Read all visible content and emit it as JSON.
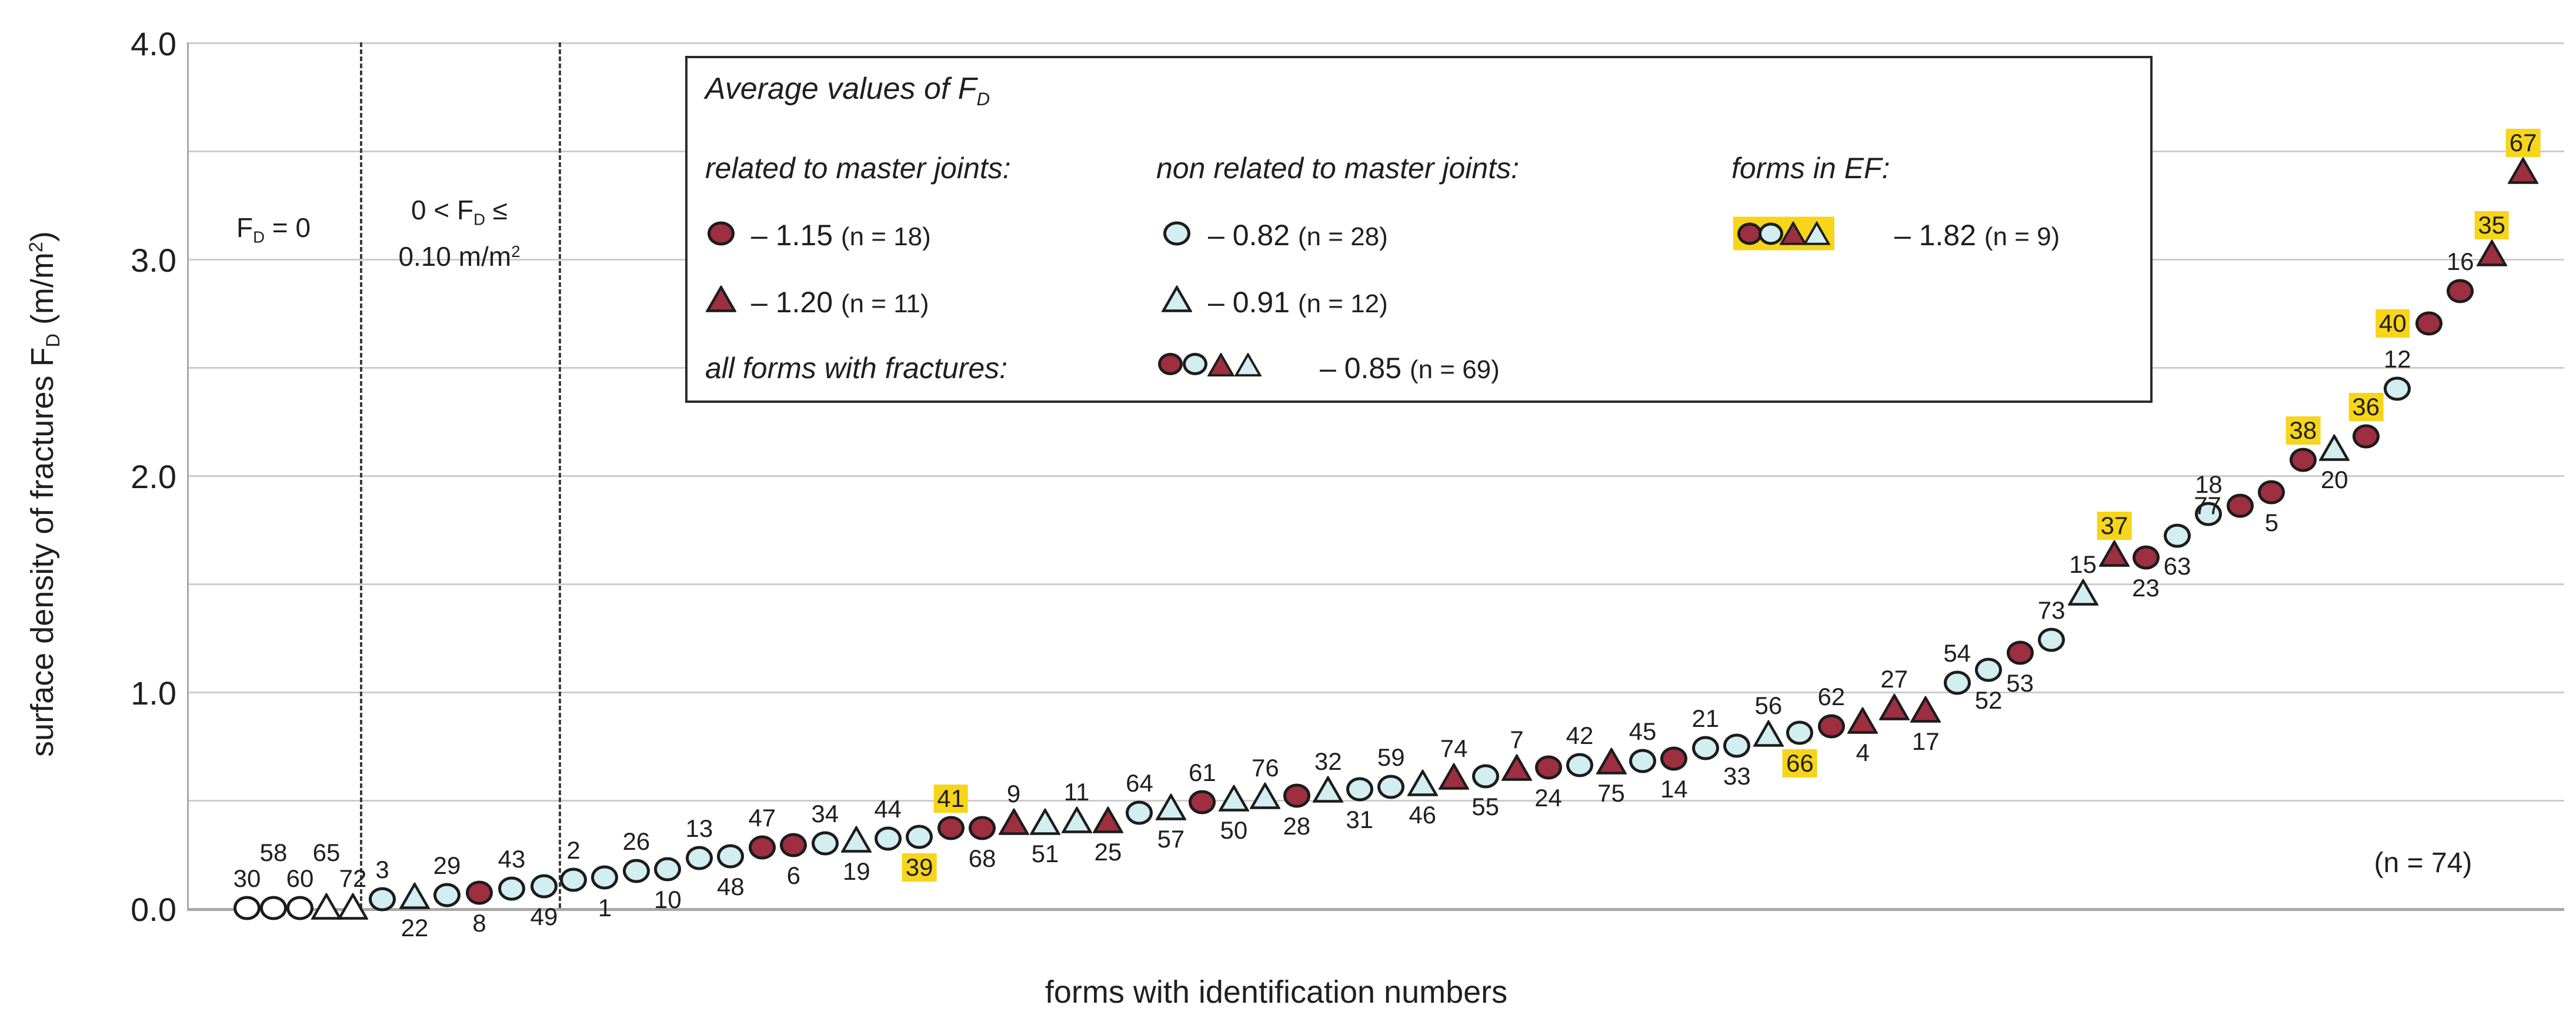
{
  "colors": {
    "mj_fill": "#9e2f40",
    "nmj_fill": "#d2eef1",
    "open_fill": "#ffffff",
    "outline": "#1c1c1c",
    "highlight": "#f6d51a",
    "grid": "#cccccc",
    "axis": "#a9a9a9",
    "text": "#1f1f1f"
  },
  "y_axis": {
    "title_main": "surface density of fractures F",
    "title_sub": "D",
    "title_unit_a": " (m/m",
    "title_unit_sup": "2",
    "title_unit_b": ")",
    "ticks": [
      "0.0",
      "1.0",
      "2.0",
      "3.0",
      "4.0"
    ]
  },
  "x_axis": {
    "title": "forms with identification numbers"
  },
  "annotations": {
    "n_total": "(n = 74)",
    "zone1": {
      "a": "F",
      "sub": "D",
      "b": " = 0"
    },
    "zone2": {
      "l1a": "0 < F",
      "l1sub": "D",
      "l1b": " ≤",
      "l2a": "0.10 m/m",
      "l2sup": "2"
    }
  },
  "legend": {
    "title_a": "Average values of F",
    "title_sub": "D",
    "col1_header": "related to master joints:",
    "col2_header": "non related to master joints:",
    "col3_header": "forms in EF:",
    "row3_header": "all forms with fractures:",
    "mj_circle_value": "– 1.15",
    "mj_circle_n": "(n = 18)",
    "mj_triangle_value": "– 1.20",
    "mj_triangle_n": "(n = 11)",
    "nmj_circle_value": "– 0.82",
    "nmj_circle_n": "(n = 28)",
    "nmj_triangle_value": "– 0.91",
    "nmj_triangle_n": "(n = 12)",
    "ef_value": "– 1.82",
    "ef_n": "(n = 9)",
    "all_value": "– 0.85",
    "all_n": "(n = 69)"
  },
  "chart_data": {
    "type": "scatter",
    "title": "",
    "xlabel": "forms with identification numbers",
    "ylabel": "surface density of fractures F_D (m/m2)",
    "ylim": [
      0,
      4.0
    ],
    "grid_step": 0.5,
    "legend_position": "top-center-inside",
    "zone_boundaries_note": "two vertical dashed lines separate F_D = 0 forms and 0 < F_D <= 0.10 m/m2 forms",
    "marker_types": {
      "mj-circle": "dark red filled circle - related to master joints",
      "mj-triangle": "dark red filled triangle - related to master joints",
      "nmj-circle": "light blue filled circle - non related to master joints",
      "nmj-triangle": "light blue filled triangle - non related to master joints",
      "open-circle": "white circle - F_D = 0",
      "open-triangle": "white triangle - F_D = 0"
    },
    "points": [
      {
        "id": "30",
        "marker": "open-circle",
        "value": 0,
        "label_pos": "above",
        "highlight": false
      },
      {
        "id": "58",
        "marker": "open-circle",
        "value": 0,
        "label_pos": "above2",
        "highlight": false
      },
      {
        "id": "60",
        "marker": "open-circle",
        "value": 0,
        "label_pos": "above",
        "highlight": false
      },
      {
        "id": "65",
        "marker": "open-triangle",
        "value": 0,
        "label_pos": "above2",
        "highlight": false
      },
      {
        "id": "72",
        "marker": "open-triangle",
        "value": 0,
        "label_pos": "above",
        "highlight": false
      },
      {
        "id": "3",
        "marker": "nmj-circle",
        "value": 0.04,
        "label_pos": "above",
        "highlight": false
      },
      {
        "id": "22",
        "marker": "nmj-triangle",
        "value": 0.05,
        "label_pos": "below",
        "highlight": false
      },
      {
        "id": "29",
        "marker": "nmj-circle",
        "value": 0.06,
        "label_pos": "above",
        "highlight": false
      },
      {
        "id": "8",
        "marker": "mj-circle",
        "value": 0.07,
        "label_pos": "below",
        "highlight": false
      },
      {
        "id": "43",
        "marker": "nmj-circle",
        "value": 0.09,
        "label_pos": "above",
        "highlight": false
      },
      {
        "id": "49",
        "marker": "nmj-circle",
        "value": 0.1,
        "label_pos": "below",
        "highlight": false
      },
      {
        "id": "2",
        "marker": "nmj-circle",
        "value": 0.13,
        "label_pos": "above",
        "highlight": false
      },
      {
        "id": "1",
        "marker": "nmj-circle",
        "value": 0.14,
        "label_pos": "below",
        "highlight": false
      },
      {
        "id": "26",
        "marker": "nmj-circle",
        "value": 0.17,
        "label_pos": "above",
        "highlight": false
      },
      {
        "id": "10",
        "marker": "nmj-circle",
        "value": 0.18,
        "label_pos": "below",
        "highlight": false
      },
      {
        "id": "13",
        "marker": "nmj-circle",
        "value": 0.23,
        "label_pos": "above",
        "highlight": false
      },
      {
        "id": "48",
        "marker": "nmj-circle",
        "value": 0.24,
        "label_pos": "below",
        "highlight": false
      },
      {
        "id": "47",
        "marker": "mj-circle",
        "value": 0.28,
        "label_pos": "above",
        "highlight": false
      },
      {
        "id": "6",
        "marker": "mj-circle",
        "value": 0.29,
        "label_pos": "below",
        "highlight": false
      },
      {
        "id": "34",
        "marker": "nmj-circle",
        "value": 0.3,
        "label_pos": "above",
        "highlight": false
      },
      {
        "id": "19",
        "marker": "nmj-triangle",
        "value": 0.31,
        "label_pos": "below",
        "highlight": false
      },
      {
        "id": "44",
        "marker": "nmj-circle",
        "value": 0.32,
        "label_pos": "above",
        "highlight": false
      },
      {
        "id": "39",
        "marker": "nmj-circle",
        "value": 0.33,
        "label_pos": "below",
        "highlight": true
      },
      {
        "id": "41",
        "marker": "mj-circle",
        "value": 0.37,
        "label_pos": "above",
        "highlight": true
      },
      {
        "id": "68",
        "marker": "mj-circle",
        "value": 0.37,
        "label_pos": "below",
        "highlight": false
      },
      {
        "id": "9",
        "marker": "mj-triangle",
        "value": 0.39,
        "label_pos": "above",
        "highlight": false
      },
      {
        "id": "51",
        "marker": "nmj-triangle",
        "value": 0.39,
        "label_pos": "below",
        "highlight": false
      },
      {
        "id": "11",
        "marker": "nmj-triangle",
        "value": 0.4,
        "label_pos": "above",
        "highlight": false
      },
      {
        "id": "25",
        "marker": "mj-triangle",
        "value": 0.4,
        "label_pos": "below",
        "highlight": false
      },
      {
        "id": "64",
        "marker": "nmj-circle",
        "value": 0.44,
        "label_pos": "above",
        "highlight": false
      },
      {
        "id": "57",
        "marker": "nmj-triangle",
        "value": 0.46,
        "label_pos": "below",
        "highlight": false
      },
      {
        "id": "61",
        "marker": "mj-circle",
        "value": 0.49,
        "label_pos": "above",
        "highlight": false
      },
      {
        "id": "50",
        "marker": "nmj-triangle",
        "value": 0.5,
        "label_pos": "below",
        "highlight": false
      },
      {
        "id": "76",
        "marker": "nmj-triangle",
        "value": 0.51,
        "label_pos": "above",
        "highlight": false
      },
      {
        "id": "28",
        "marker": "mj-circle",
        "value": 0.52,
        "label_pos": "below",
        "highlight": false
      },
      {
        "id": "32",
        "marker": "nmj-triangle",
        "value": 0.54,
        "label_pos": "above",
        "highlight": false
      },
      {
        "id": "31",
        "marker": "nmj-circle",
        "value": 0.55,
        "label_pos": "below",
        "highlight": false
      },
      {
        "id": "59",
        "marker": "nmj-circle",
        "value": 0.56,
        "label_pos": "above",
        "highlight": false
      },
      {
        "id": "46",
        "marker": "nmj-triangle",
        "value": 0.57,
        "label_pos": "below",
        "highlight": false
      },
      {
        "id": "74",
        "marker": "mj-triangle",
        "value": 0.6,
        "label_pos": "above",
        "highlight": false
      },
      {
        "id": "55",
        "marker": "nmj-circle",
        "value": 0.61,
        "label_pos": "below",
        "highlight": false
      },
      {
        "id": "7",
        "marker": "mj-triangle",
        "value": 0.64,
        "label_pos": "above",
        "highlight": false
      },
      {
        "id": "24",
        "marker": "mj-circle",
        "value": 0.65,
        "label_pos": "below",
        "highlight": false
      },
      {
        "id": "42",
        "marker": "nmj-circle",
        "value": 0.66,
        "label_pos": "above",
        "highlight": false
      },
      {
        "id": "75",
        "marker": "mj-triangle",
        "value": 0.67,
        "label_pos": "below",
        "highlight": false
      },
      {
        "id": "45",
        "marker": "nmj-circle",
        "value": 0.68,
        "label_pos": "above",
        "highlight": false
      },
      {
        "id": "14",
        "marker": "mj-circle",
        "value": 0.69,
        "label_pos": "below",
        "highlight": false
      },
      {
        "id": "21",
        "marker": "nmj-circle",
        "value": 0.74,
        "label_pos": "above",
        "highlight": false
      },
      {
        "id": "33",
        "marker": "nmj-circle",
        "value": 0.75,
        "label_pos": "below",
        "highlight": false
      },
      {
        "id": "56",
        "marker": "nmj-triangle",
        "value": 0.8,
        "label_pos": "above",
        "highlight": false
      },
      {
        "id": "66",
        "marker": "nmj-circle",
        "value": 0.81,
        "label_pos": "below",
        "highlight": true
      },
      {
        "id": "62",
        "marker": "mj-circle",
        "value": 0.84,
        "label_pos": "above",
        "highlight": false
      },
      {
        "id": "4",
        "marker": "mj-triangle",
        "value": 0.86,
        "label_pos": "below",
        "highlight": false
      },
      {
        "id": "27",
        "marker": "mj-triangle",
        "value": 0.92,
        "label_pos": "above",
        "highlight": false
      },
      {
        "id": "17",
        "marker": "mj-triangle",
        "value": 0.91,
        "label_pos": "below",
        "highlight": false
      },
      {
        "id": "54",
        "marker": "nmj-circle",
        "value": 1.04,
        "label_pos": "above",
        "highlight": false
      },
      {
        "id": "52",
        "marker": "nmj-circle",
        "value": 1.1,
        "label_pos": "below",
        "highlight": false
      },
      {
        "id": "53",
        "marker": "mj-circle",
        "value": 1.18,
        "label_pos": "below",
        "highlight": false
      },
      {
        "id": "73",
        "marker": "nmj-circle",
        "value": 1.24,
        "label_pos": "above",
        "highlight": false
      },
      {
        "id": "15",
        "marker": "nmj-triangle",
        "value": 1.45,
        "label_pos": "above",
        "highlight": false
      },
      {
        "id": "37",
        "marker": "mj-triangle",
        "value": 1.63,
        "label_pos": "above",
        "highlight": true
      },
      {
        "id": "23",
        "marker": "mj-circle",
        "value": 1.62,
        "label_pos": "below",
        "highlight": false
      },
      {
        "id": "63",
        "marker": "nmj-circle",
        "value": 1.72,
        "label_pos": "below",
        "highlight": false
      },
      {
        "id": "18",
        "marker": "nmj-circle",
        "value": 1.82,
        "label_pos": "above",
        "highlight": false
      },
      {
        "id": "77",
        "marker": "mj-circle",
        "value": 1.86,
        "label_pos": "left",
        "highlight": false
      },
      {
        "id": "5",
        "marker": "mj-circle",
        "value": 1.92,
        "label_pos": "below",
        "highlight": false
      },
      {
        "id": "38",
        "marker": "mj-circle",
        "value": 2.07,
        "label_pos": "above",
        "highlight": true
      },
      {
        "id": "20",
        "marker": "nmj-triangle",
        "value": 2.12,
        "label_pos": "below",
        "highlight": false
      },
      {
        "id": "36",
        "marker": "mj-circle",
        "value": 2.18,
        "label_pos": "above",
        "highlight": true
      },
      {
        "id": "12",
        "marker": "nmj-circle",
        "value": 2.4,
        "label_pos": "above",
        "highlight": false
      },
      {
        "id": "40",
        "marker": "mj-circle",
        "value": 2.7,
        "label_pos": "left",
        "highlight": true
      },
      {
        "id": "16",
        "marker": "mj-circle",
        "value": 2.85,
        "label_pos": "above",
        "highlight": false
      },
      {
        "id": "35",
        "marker": "mj-triangle",
        "value": 3.02,
        "label_pos": "above",
        "highlight": true
      },
      {
        "id": "67",
        "marker": "mj-triangle",
        "value": 3.4,
        "label_pos": "above",
        "highlight": true
      }
    ],
    "averages": [
      {
        "group": "related to master joints - circles",
        "value": 1.15,
        "n": 18
      },
      {
        "group": "related to master joints - triangles",
        "value": 1.2,
        "n": 11
      },
      {
        "group": "non related to master joints - circles",
        "value": 0.82,
        "n": 28
      },
      {
        "group": "non related to master joints - triangles",
        "value": 0.91,
        "n": 12
      },
      {
        "group": "forms in EF",
        "value": 1.82,
        "n": 9
      },
      {
        "group": "all forms with fractures",
        "value": 0.85,
        "n": 69
      }
    ]
  }
}
